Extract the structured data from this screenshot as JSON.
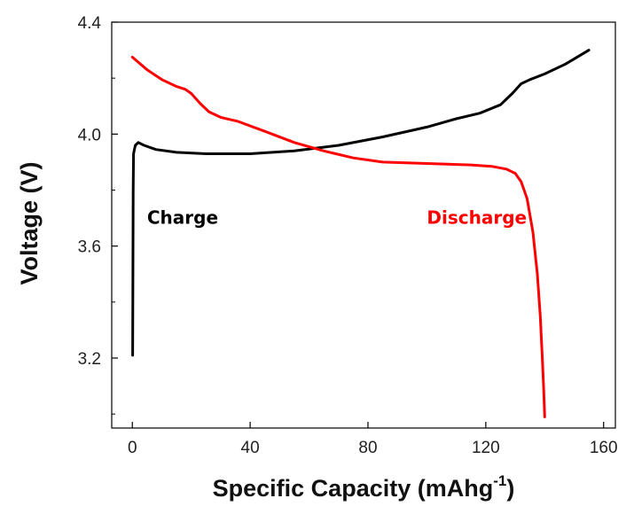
{
  "chart_data": {
    "type": "line",
    "xlabel": "Specific Capacity (mAhg",
    "xlabel_superscript": "-1",
    "xlabel_suffix": ")",
    "ylabel": "Voltage (V)",
    "xlim": [
      -7,
      164
    ],
    "ylim": [
      2.95,
      4.4
    ],
    "x_ticks": [
      0,
      40,
      80,
      120,
      160
    ],
    "x_tick_labels": [
      "0",
      "40",
      "80",
      "120",
      "160"
    ],
    "y_ticks": [
      3.2,
      3.6,
      4.0,
      4.4
    ],
    "y_tick_labels": [
      "3.2",
      "3.6",
      "4.0",
      "4.4"
    ],
    "grid": false,
    "legend": "none",
    "series": [
      {
        "name": "Charge",
        "color": "#000000",
        "points": [
          [
            0.1,
            3.21
          ],
          [
            0.2,
            3.5
          ],
          [
            0.3,
            3.8
          ],
          [
            0.4,
            3.93
          ],
          [
            1,
            3.96
          ],
          [
            2,
            3.97
          ],
          [
            4,
            3.96
          ],
          [
            8,
            3.945
          ],
          [
            15,
            3.935
          ],
          [
            25,
            3.93
          ],
          [
            40,
            3.93
          ],
          [
            55,
            3.94
          ],
          [
            70,
            3.96
          ],
          [
            85,
            3.99
          ],
          [
            100,
            4.025
          ],
          [
            110,
            4.055
          ],
          [
            118,
            4.075
          ],
          [
            125,
            4.105
          ],
          [
            129,
            4.145
          ],
          [
            132,
            4.18
          ],
          [
            135,
            4.195
          ],
          [
            140,
            4.215
          ],
          [
            147,
            4.25
          ],
          [
            155,
            4.3
          ]
        ]
      },
      {
        "name": "Discharge",
        "color": "#ff0000",
        "points": [
          [
            0,
            4.275
          ],
          [
            5,
            4.23
          ],
          [
            10,
            4.195
          ],
          [
            15,
            4.17
          ],
          [
            18,
            4.16
          ],
          [
            20,
            4.145
          ],
          [
            23,
            4.11
          ],
          [
            26,
            4.08
          ],
          [
            30,
            4.06
          ],
          [
            36,
            4.045
          ],
          [
            45,
            4.01
          ],
          [
            55,
            3.97
          ],
          [
            65,
            3.94
          ],
          [
            75,
            3.915
          ],
          [
            85,
            3.9
          ],
          [
            100,
            3.895
          ],
          [
            115,
            3.89
          ],
          [
            122,
            3.885
          ],
          [
            127,
            3.875
          ],
          [
            130,
            3.86
          ],
          [
            132,
            3.83
          ],
          [
            134,
            3.77
          ],
          [
            136,
            3.65
          ],
          [
            137.5,
            3.5
          ],
          [
            138.5,
            3.35
          ],
          [
            139.2,
            3.2
          ],
          [
            139.6,
            3.1
          ],
          [
            140,
            2.99
          ]
        ]
      }
    ],
    "annotations": [
      {
        "text": "Charge",
        "x": 5,
        "y": 3.68,
        "color": "#000000"
      },
      {
        "text": "Discharge",
        "x": 100,
        "y": 3.68,
        "color": "#ff0000"
      }
    ]
  }
}
